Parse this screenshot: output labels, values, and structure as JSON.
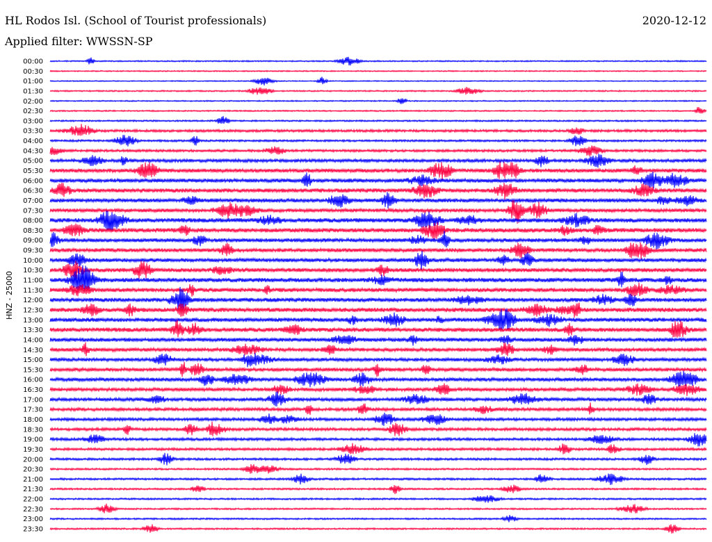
{
  "header": {
    "station": "HL Rodos Isl. (School of Tourist professionals)",
    "date": "2020-12-12",
    "filter_label": "Applied filter:",
    "filter_value": "WWSSN-SP"
  },
  "chart_data": {
    "type": "helicorder",
    "ylabel": "HNZ - 25000",
    "row_interval_minutes": 30,
    "trace_colors": [
      "#0000ff",
      "#ff0040"
    ],
    "rows": [
      {
        "time": "00:00",
        "activity": 0.18
      },
      {
        "time": "00:30",
        "activity": 0.16
      },
      {
        "time": "01:00",
        "activity": 0.12
      },
      {
        "time": "01:30",
        "activity": 0.2
      },
      {
        "time": "02:00",
        "activity": 0.16
      },
      {
        "time": "02:30",
        "activity": 0.2
      },
      {
        "time": "03:00",
        "activity": 0.25
      },
      {
        "time": "03:30",
        "activity": 0.45
      },
      {
        "time": "04:00",
        "activity": 0.35
      },
      {
        "time": "04:30",
        "activity": 0.45
      },
      {
        "time": "05:00",
        "activity": 0.6
      },
      {
        "time": "05:30",
        "activity": 0.75
      },
      {
        "time": "06:00",
        "activity": 0.75
      },
      {
        "time": "06:30",
        "activity": 0.8
      },
      {
        "time": "07:00",
        "activity": 0.75
      },
      {
        "time": "07:30",
        "activity": 0.7
      },
      {
        "time": "08:00",
        "activity": 0.85
      },
      {
        "time": "08:30",
        "activity": 0.85
      },
      {
        "time": "09:00",
        "activity": 0.75
      },
      {
        "time": "09:30",
        "activity": 0.75
      },
      {
        "time": "10:00",
        "activity": 0.75
      },
      {
        "time": "10:30",
        "activity": 0.8
      },
      {
        "time": "11:00",
        "activity": 0.85
      },
      {
        "time": "11:30",
        "activity": 0.8
      },
      {
        "time": "12:00",
        "activity": 0.8
      },
      {
        "time": "12:30",
        "activity": 0.85
      },
      {
        "time": "13:00",
        "activity": 0.8
      },
      {
        "time": "13:30",
        "activity": 0.85
      },
      {
        "time": "14:00",
        "activity": 0.75
      },
      {
        "time": "14:30",
        "activity": 0.7
      },
      {
        "time": "15:00",
        "activity": 0.65
      },
      {
        "time": "15:30",
        "activity": 0.7
      },
      {
        "time": "16:00",
        "activity": 0.7
      },
      {
        "time": "16:30",
        "activity": 0.65
      },
      {
        "time": "17:00",
        "activity": 0.65
      },
      {
        "time": "17:30",
        "activity": 0.6
      },
      {
        "time": "18:00",
        "activity": 0.55
      },
      {
        "time": "18:30",
        "activity": 0.55
      },
      {
        "time": "19:00",
        "activity": 0.5
      },
      {
        "time": "19:30",
        "activity": 0.45
      },
      {
        "time": "20:00",
        "activity": 0.4
      },
      {
        "time": "20:30",
        "activity": 0.3
      },
      {
        "time": "21:00",
        "activity": 0.35
      },
      {
        "time": "21:30",
        "activity": 0.3
      },
      {
        "time": "22:00",
        "activity": 0.28
      },
      {
        "time": "22:30",
        "activity": 0.25
      },
      {
        "time": "23:00",
        "activity": 0.25
      },
      {
        "time": "23:30",
        "activity": 0.25
      }
    ]
  }
}
